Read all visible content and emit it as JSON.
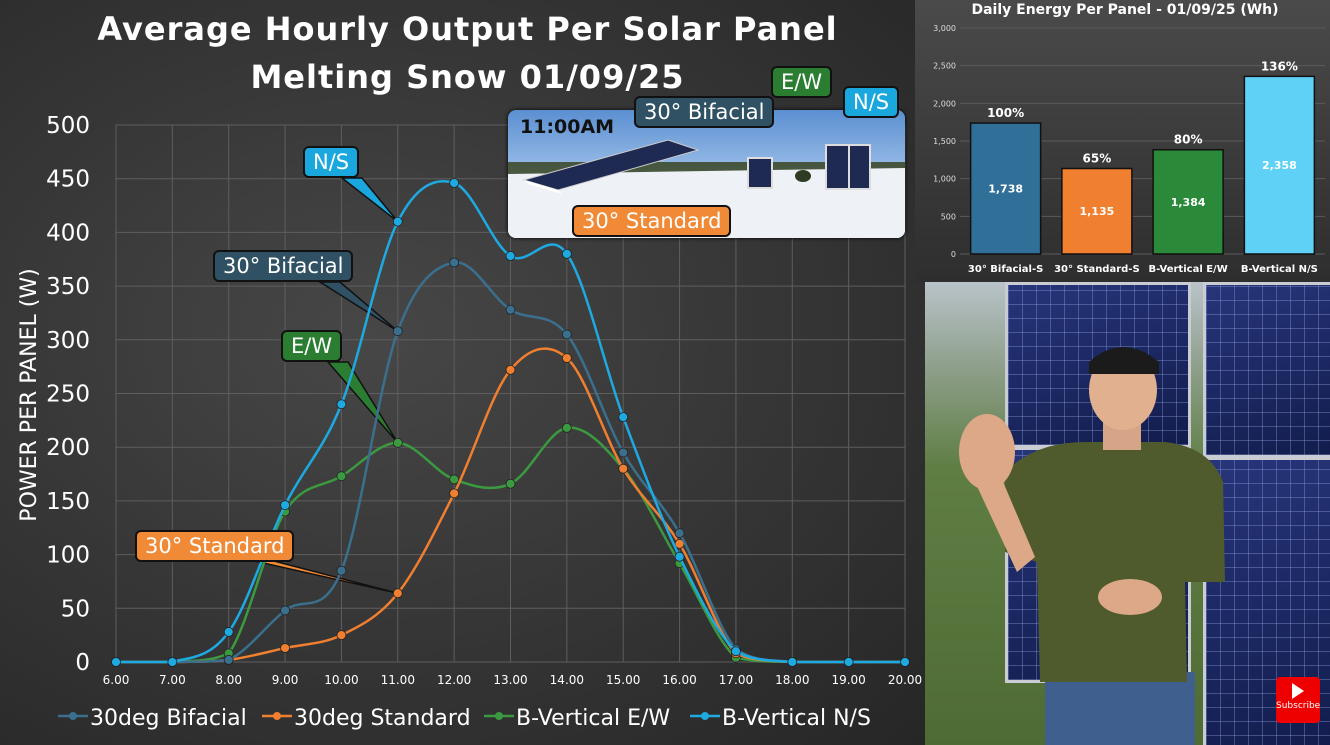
{
  "main_chart": {
    "title_line1": "Average Hourly Output Per Solar Panel",
    "title_line2": "Melting Snow 01/09/25",
    "inset_time": "11:00AM",
    "callouts": {
      "ns": "N/S",
      "bifacial": "30° Bifacial",
      "ew": "E/W",
      "standard": "30° Standard"
    },
    "photo_callouts": {
      "bifacial": "30° Bifacial",
      "ew": "E/W",
      "ns": "N/S",
      "standard": "30° Standard"
    }
  },
  "chart_data": [
    {
      "type": "line",
      "title": "Average Hourly Output Per Solar Panel Melting Snow 01/09/25",
      "ylabel": "POWER PER PANEL (W)",
      "xlabel": "",
      "ylim": [
        0,
        500
      ],
      "xlim": [
        6,
        20
      ],
      "y_ticks": [
        "0",
        "50",
        "100",
        "150",
        "200",
        "250",
        "300",
        "350",
        "400",
        "450",
        "500"
      ],
      "x_ticks": [
        "6.00",
        "7.00",
        "8.00",
        "9.00",
        "10.00",
        "11.00",
        "12.00",
        "13.00",
        "14.00",
        "15.00",
        "16.00",
        "17.00",
        "18.00",
        "19.00",
        "20.00"
      ],
      "grid": true,
      "legend_position": "bottom",
      "x": [
        6,
        7,
        8,
        9,
        10,
        11,
        12,
        13,
        14,
        15,
        16,
        17,
        18,
        19,
        20
      ],
      "series": [
        {
          "name": "30deg Bifacial",
          "color": "#3a6f8e",
          "values": [
            0,
            0,
            2,
            48,
            85,
            308,
            372,
            328,
            305,
            195,
            120,
            12,
            0,
            0,
            0
          ]
        },
        {
          "name": "30deg Standard",
          "color": "#f07f30",
          "values": [
            0,
            0,
            2,
            13,
            25,
            64,
            157,
            272,
            283,
            180,
            110,
            8,
            0,
            0,
            0
          ]
        },
        {
          "name": "B-Vertical E/W",
          "color": "#3b9a3f",
          "values": [
            0,
            0,
            8,
            140,
            173,
            204,
            170,
            166,
            218,
            180,
            92,
            4,
            0,
            0,
            0
          ]
        },
        {
          "name": "B-Vertical N/S",
          "color": "#1ea9e0",
          "values": [
            0,
            0,
            28,
            146,
            240,
            410,
            446,
            378,
            380,
            228,
            98,
            10,
            0,
            0,
            0
          ]
        }
      ]
    },
    {
      "type": "bar",
      "title": "Daily Energy Per Panel - 01/09/25 (Wh)",
      "ylim": [
        0,
        3000
      ],
      "y_ticks": [
        "0",
        "500",
        "1,000",
        "1,500",
        "2,000",
        "2,500",
        "3,000"
      ],
      "categories": [
        "30° Bifacial-S",
        "30° Standard-S",
        "B-Vertical E/W",
        "B-Vertical N/S"
      ],
      "values": [
        1738,
        1135,
        1384,
        2358
      ],
      "value_labels": [
        "1,738",
        "1,135",
        "1,384",
        "2,358"
      ],
      "percent_labels": [
        "100%",
        "65%",
        "80%",
        "136%"
      ],
      "colors": [
        "#2f6f98",
        "#f07f30",
        "#2b8a3a",
        "#5fd1f7"
      ]
    }
  ],
  "video": {
    "subscribe": "Subscribe"
  }
}
